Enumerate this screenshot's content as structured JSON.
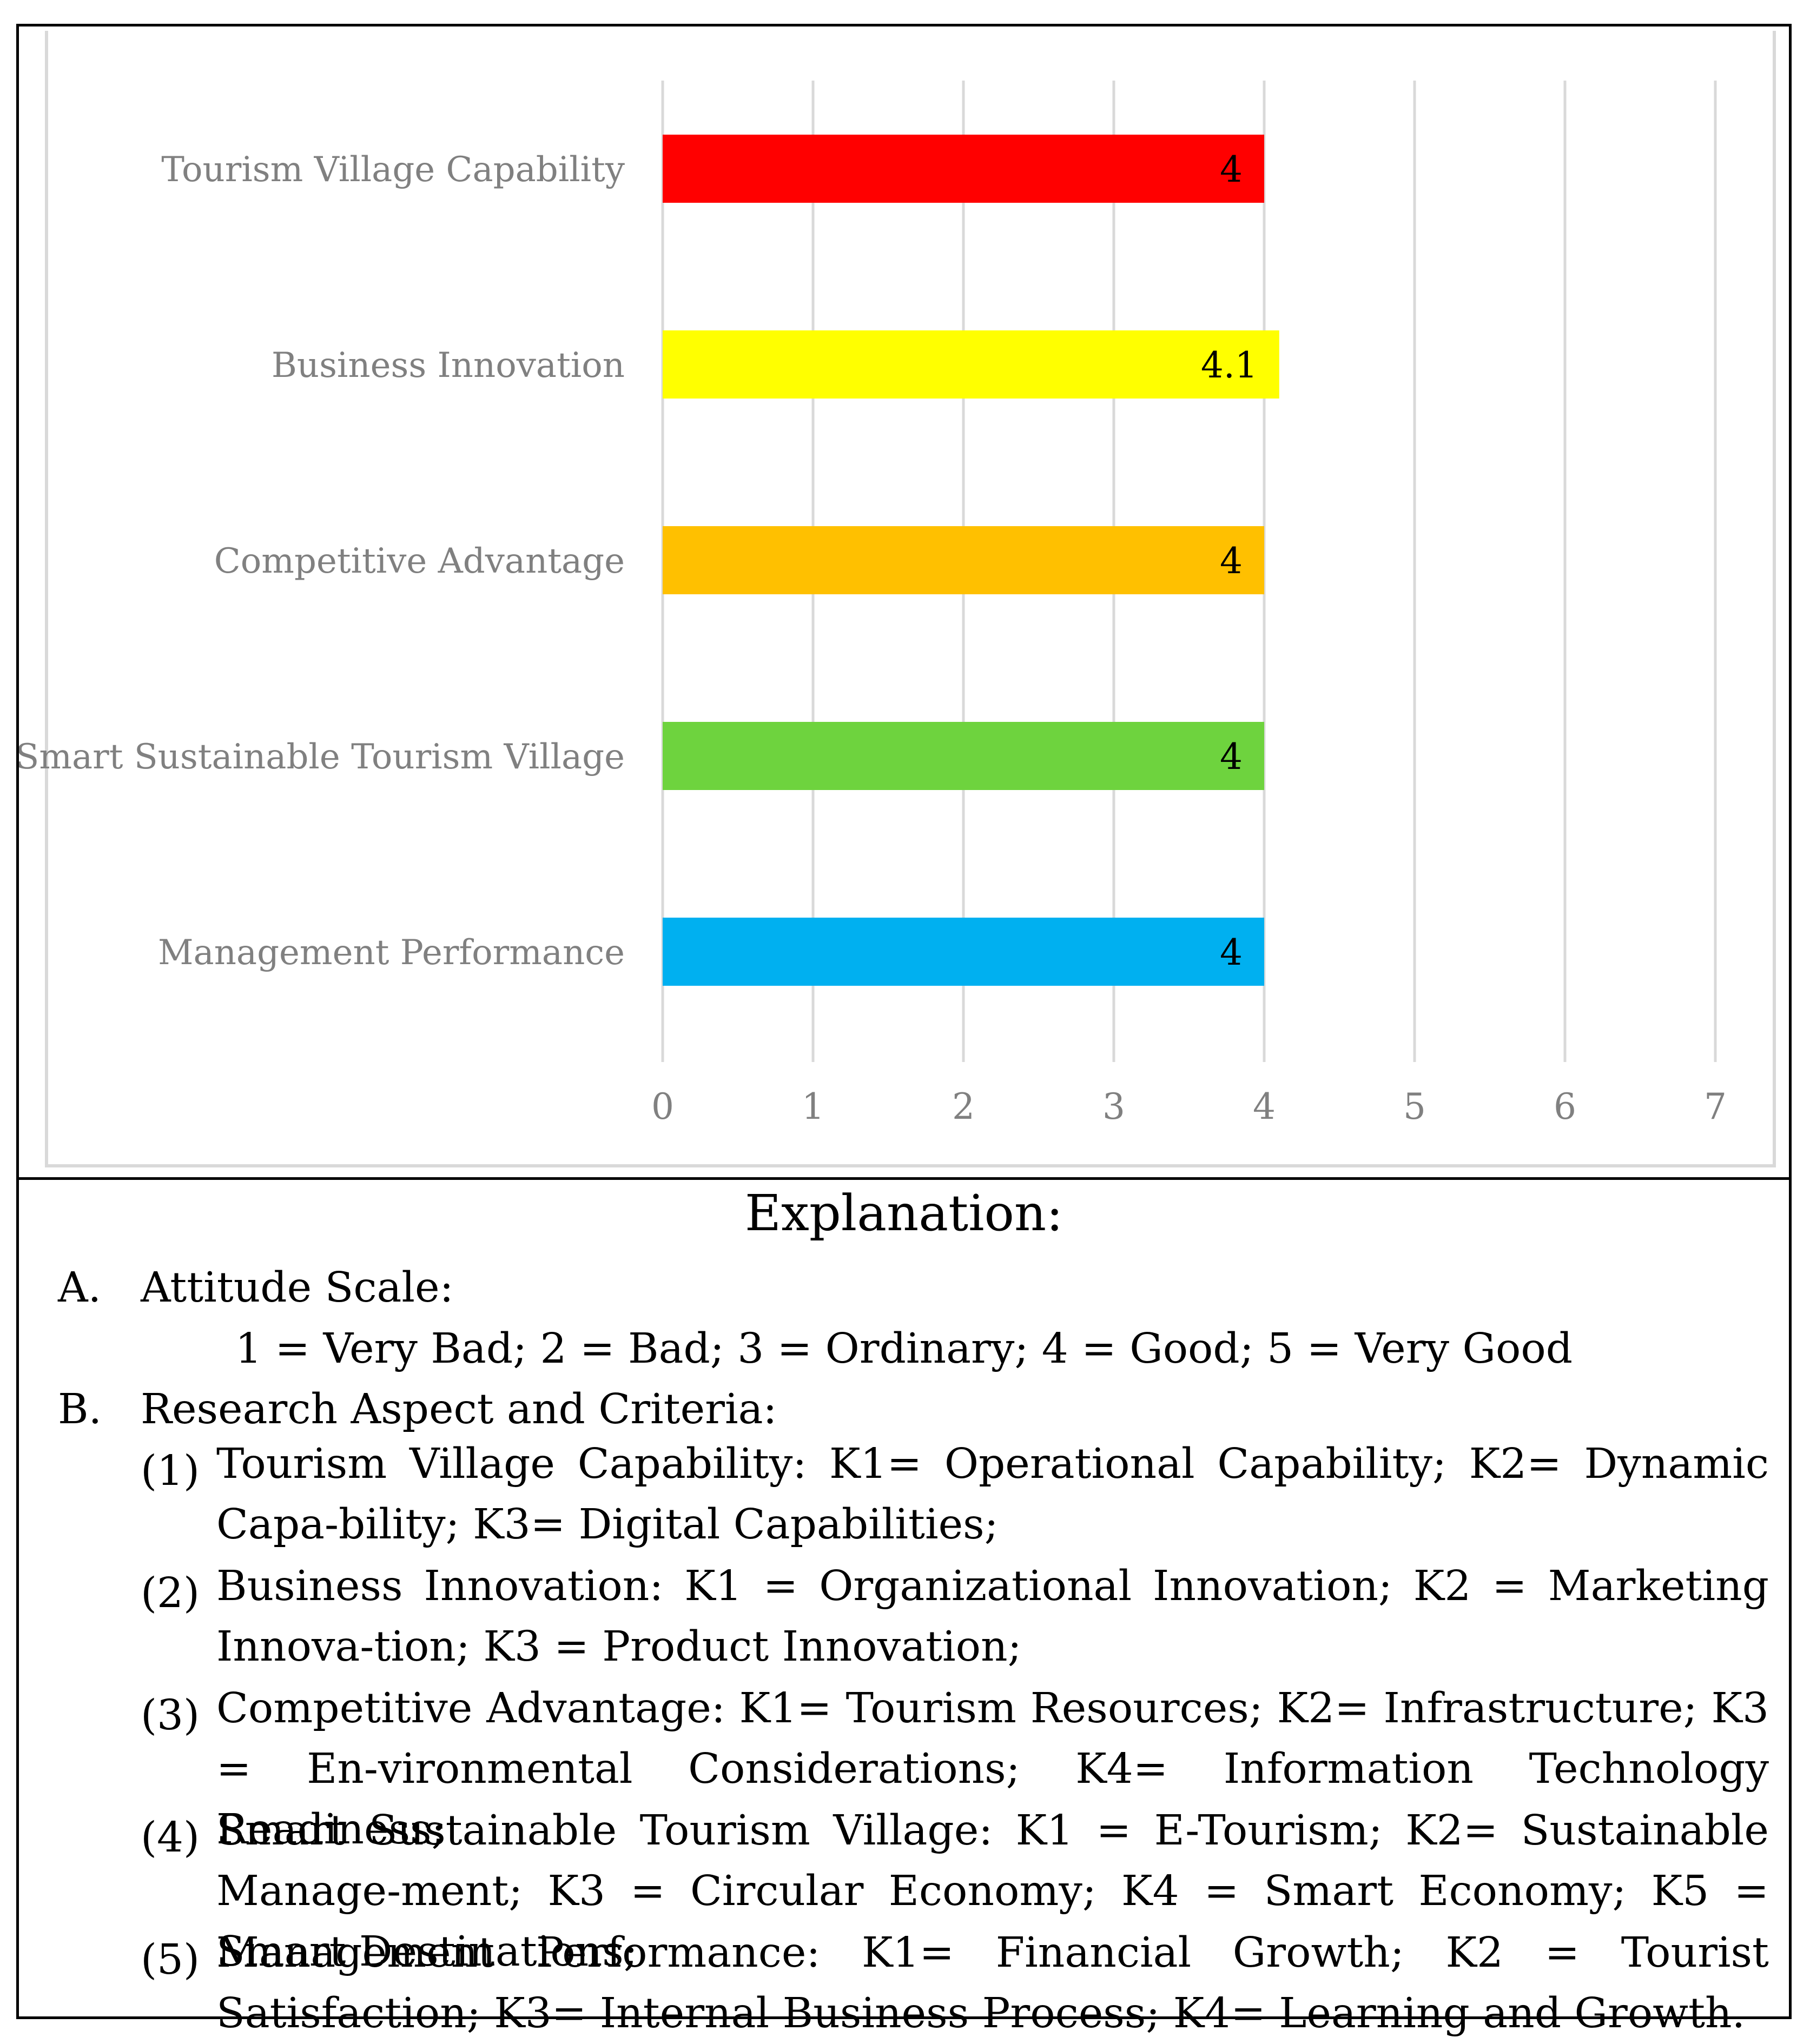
{
  "chart_data": {
    "type": "bar",
    "orientation": "horizontal",
    "categories": [
      "Tourism Village Capability",
      "Business Innovation",
      "Competitive Advantage",
      "Smart Sustainable Tourism Village",
      "Management Performance"
    ],
    "values": [
      4,
      4.1,
      4,
      4,
      4
    ],
    "data_labels": [
      "4",
      "4.1",
      "4",
      "4",
      "4"
    ],
    "colors": [
      "#FF0000",
      "#FFFF00",
      "#FFC000",
      "#6ED33E",
      "#00B0F0"
    ],
    "xlim": [
      0,
      7
    ],
    "x_ticks": [
      "0",
      "1",
      "2",
      "3",
      "4",
      "5",
      "6",
      "7"
    ],
    "grid": true,
    "title": "",
    "xlabel": "",
    "ylabel": ""
  },
  "explanation": {
    "title": "Explanation:",
    "a_marker": "A.",
    "a_label": "Attitude Scale:",
    "scale": "1 = Very Bad; 2 = Bad; 3 = Ordinary; 4 = Good; 5 = Very Good",
    "b_marker": "B.",
    "b_label": "Research Aspect and Criteria:",
    "items": [
      {
        "num": "(1)",
        "text": "Tourism Village Capability: K1= Operational Capability; K2= Dynamic Capa-bility; K3= Digital Capabilities;"
      },
      {
        "num": "(2)",
        "text": "Business Innovation: K1 = Organizational Innovation; K2 = Marketing Innova-tion; K3 = Product Innovation;"
      },
      {
        "num": "(3)",
        "text": "Competitive Advantage: K1= Tourism Resources; K2= Infrastructure; K3 = En-vironmental Considerations; K4= Information Technology Readiness;"
      },
      {
        "num": "(4)",
        "text": "Smart Sustainable Tourism Village: K1 = E-Tourism; K2= Sustainable Manage-ment; K3 = Circular Economy; K4 = Smart Economy; K5 = Smart Destinations;"
      },
      {
        "num": "(5)",
        "text": "Management Performance: K1= Financial Growth; K2 = Tourist Satisfaction; K3= Internal Business Process; K4= Learning and Growth."
      }
    ]
  }
}
